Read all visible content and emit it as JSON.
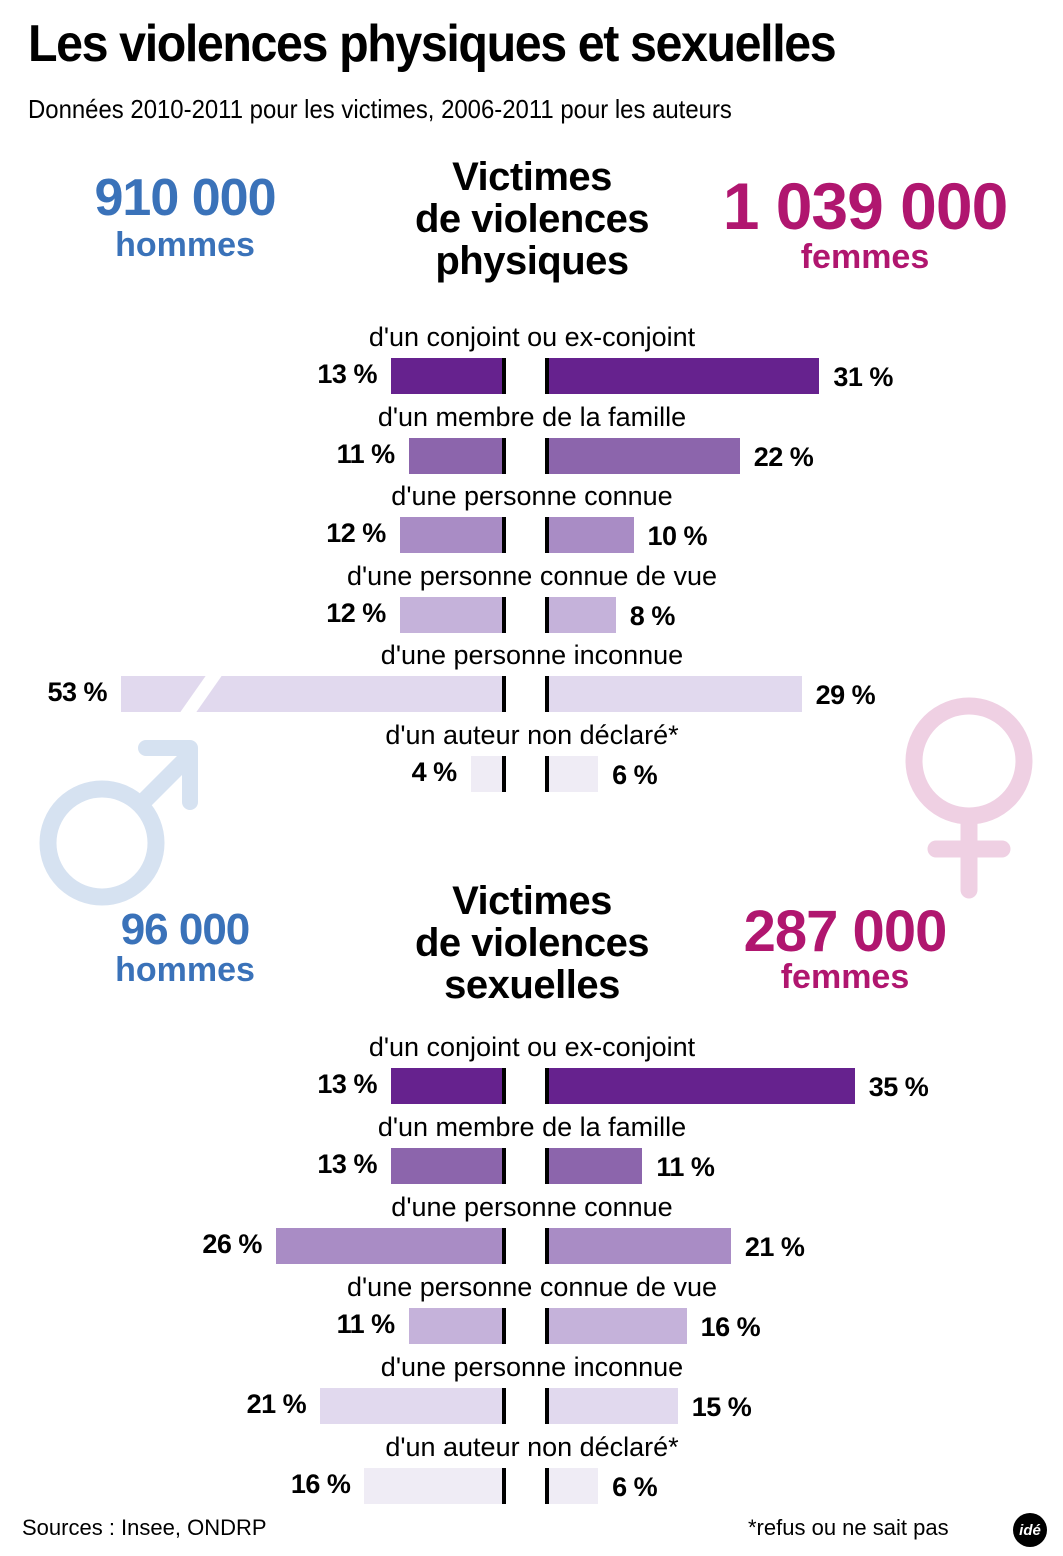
{
  "header": {
    "title": "Les violences physiques et sexuelles",
    "subtitle": "Données 2010-2011 pour les victimes, 2006-2011 pour les auteurs"
  },
  "colors": {
    "men": "#3a72b9",
    "women": "#b0166f",
    "male_symbol": "#d6e2f1",
    "female_symbol": "#efd0e3",
    "bar_conjoint": "#66228e",
    "bar_famille": "#8c65ac",
    "bar_connue": "#a98cc5",
    "bar_connue_vue": "#c5b2da",
    "bar_inconnue": "#e1d9ee",
    "bar_non_declare": "#efecf5"
  },
  "physical": {
    "title_lines": [
      "Victimes",
      "de violences",
      "physiques"
    ],
    "men_count": "910 000",
    "men_label": "hommes",
    "women_count": "1 039 000",
    "women_label": "femmes"
  },
  "sexual": {
    "title_lines": [
      "Victimes",
      "de violences",
      "sexuelles"
    ],
    "men_count": "96 000",
    "men_label": "hommes",
    "women_count": "287 000",
    "women_label": "femmes"
  },
  "categories": [
    "d'un conjoint ou ex-conjoint",
    "d'un membre de la famille",
    "d'une personne connue",
    "d'une personne connue de vue",
    "d'une personne inconnue",
    "d'un auteur non déclaré*"
  ],
  "footer": {
    "sources": "Sources : Insee, ONDRP",
    "note": "*refus ou ne sait pas",
    "logo": "idé"
  },
  "chart_data": [
    {
      "type": "bar",
      "title": "Victimes de violences physiques",
      "orientation": "horizontal-butterfly",
      "categories": [
        "d'un conjoint ou ex-conjoint",
        "d'un membre de la famille",
        "d'une personne connue",
        "d'une personne connue de vue",
        "d'une personne inconnue",
        "d'un auteur non déclaré*"
      ],
      "series": [
        {
          "name": "hommes (910 000)",
          "values": [
            13,
            11,
            12,
            12,
            53,
            4
          ]
        },
        {
          "name": "femmes (1 039 000)",
          "values": [
            31,
            22,
            10,
            8,
            29,
            6
          ]
        }
      ],
      "unit": "%",
      "labels_men": [
        "13 %",
        "11 %",
        "12 %",
        "12 %",
        "53 %",
        "4 %"
      ],
      "labels_women": [
        "31 %",
        "22 %",
        "10 %",
        "8 %",
        "29 %",
        "6 %"
      ],
      "annotations": [
        "53 % bar is truncated with a break mark"
      ]
    },
    {
      "type": "bar",
      "title": "Victimes de violences sexuelles",
      "orientation": "horizontal-butterfly",
      "categories": [
        "d'un conjoint ou ex-conjoint",
        "d'un membre de la famille",
        "d'une personne connue",
        "d'une personne connue de vue",
        "d'une personne inconnue",
        "d'un auteur non déclaré*"
      ],
      "series": [
        {
          "name": "hommes (96 000)",
          "values": [
            13,
            13,
            26,
            11,
            21,
            16
          ]
        },
        {
          "name": "femmes (287 000)",
          "values": [
            35,
            11,
            21,
            16,
            15,
            6
          ]
        }
      ],
      "unit": "%",
      "labels_men": [
        "13 %",
        "13 %",
        "26 %",
        "11 %",
        "21 %",
        "16 %"
      ],
      "labels_women": [
        "35 %",
        "11 %",
        "21 %",
        "16 %",
        "15 %",
        "6 %"
      ]
    }
  ]
}
